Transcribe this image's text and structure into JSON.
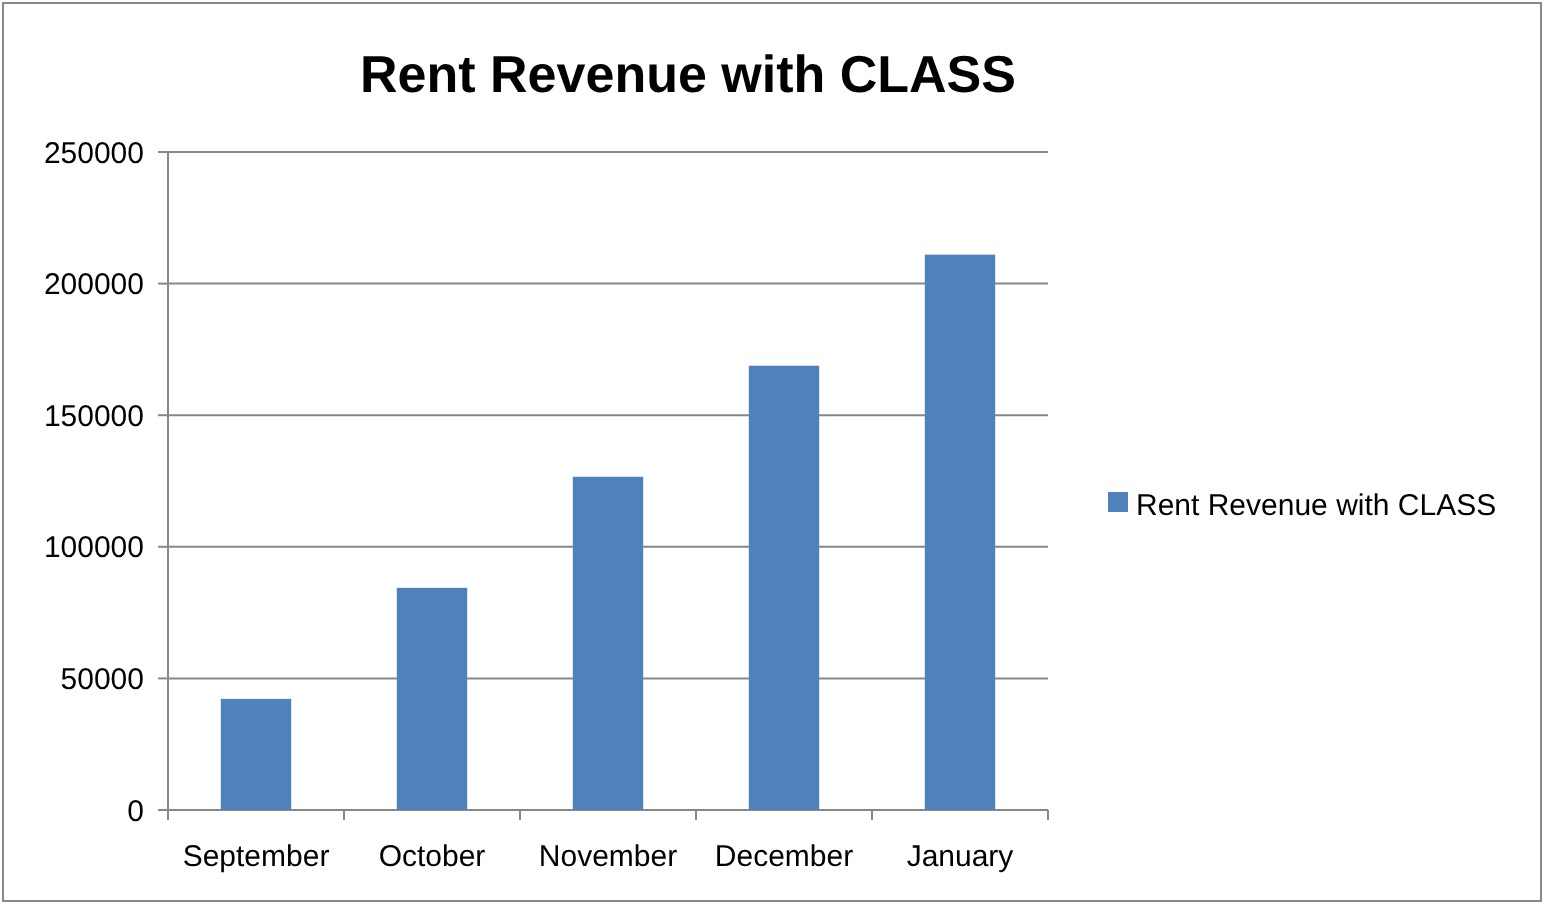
{
  "chart_data": {
    "type": "bar",
    "title": "Rent Revenue with CLASS",
    "categories": [
      "September",
      "October",
      "November",
      "December",
      "January"
    ],
    "series": [
      {
        "name": "Rent Revenue with CLASS",
        "color": "#4f81bd",
        "values": [
          42200,
          84400,
          126600,
          168800,
          211000
        ]
      }
    ],
    "ylim": [
      0,
      250000
    ],
    "yticks": [
      0,
      50000,
      100000,
      150000,
      200000,
      250000
    ],
    "grid": "y",
    "legend": "right"
  }
}
